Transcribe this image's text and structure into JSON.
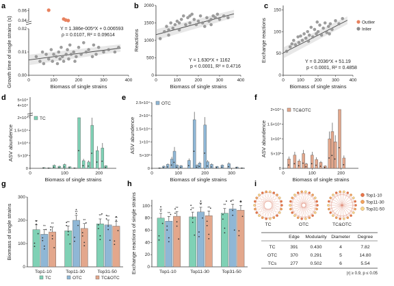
{
  "colors": {
    "inlier": "#8c8c8c",
    "outlier": "#e8825f",
    "tc": "#7fd1b5",
    "otc": "#8fb7d6",
    "tcotc": "#e3a78c",
    "axis": "#333333",
    "fit": "#444444",
    "node_top1": "#e8734a",
    "node_top11": "#f2a25c",
    "node_top31": "#f7d88a"
  },
  "chart_data": [
    {
      "panel": "a",
      "type": "scatter",
      "xlabel": "Biomass of single strains",
      "ylabel": "Growth time of single strains (s)",
      "xticks": [
        0,
        100,
        200,
        300,
        400
      ],
      "yticks_lower": [
        0.0,
        0.01,
        0.02
      ],
      "yticks_upper": [
        0.04,
        0.06
      ],
      "equation": "Y = 1.386e-005*X + 0.006593",
      "stats": "ρ = 0.0107, R² = 0.09614",
      "outliers": [
        [
          80,
          0.061
        ],
        [
          140,
          0.043
        ],
        [
          148,
          0.041
        ],
        [
          158,
          0.04
        ]
      ],
      "points": [
        [
          30,
          0.008
        ],
        [
          45,
          0.006
        ],
        [
          55,
          0.01
        ],
        [
          60,
          0.005
        ],
        [
          70,
          0.009
        ],
        [
          80,
          0.007
        ],
        [
          90,
          0.011
        ],
        [
          95,
          0.006
        ],
        [
          100,
          0.009
        ],
        [
          110,
          0.008
        ],
        [
          115,
          0.005
        ],
        [
          120,
          0.01
        ],
        [
          125,
          0.007
        ],
        [
          130,
          0.012
        ],
        [
          135,
          0.008
        ],
        [
          140,
          0.006
        ],
        [
          150,
          0.009
        ],
        [
          155,
          0.011
        ],
        [
          160,
          0.007
        ],
        [
          165,
          0.013
        ],
        [
          170,
          0.009
        ],
        [
          180,
          0.01
        ],
        [
          185,
          0.006
        ],
        [
          190,
          0.008
        ],
        [
          200,
          0.012
        ],
        [
          210,
          0.009
        ],
        [
          220,
          0.014
        ],
        [
          230,
          0.01
        ],
        [
          240,
          0.011
        ],
        [
          255,
          0.008
        ],
        [
          260,
          0.013
        ],
        [
          270,
          0.009
        ],
        [
          280,
          0.012
        ],
        [
          300,
          0.01
        ],
        [
          320,
          0.011
        ],
        [
          345,
          0.01
        ],
        [
          360,
          0.012
        ]
      ]
    },
    {
      "panel": "b",
      "type": "scatter",
      "xlabel": "Biomass of single strains",
      "ylabel": "Reactions",
      "xticks": [
        0,
        100,
        200,
        300,
        400
      ],
      "yticks": [
        0,
        500,
        1000,
        1500,
        2000
      ],
      "equation": "Y = 1.630*X + 1162",
      "stats": "p < 0.0001, R² = 0.4716",
      "points": [
        [
          20,
          1050
        ],
        [
          40,
          1250
        ],
        [
          50,
          1400
        ],
        [
          60,
          1300
        ],
        [
          70,
          1500
        ],
        [
          80,
          1350
        ],
        [
          90,
          1450
        ],
        [
          100,
          1550
        ],
        [
          110,
          1300
        ],
        [
          120,
          1600
        ],
        [
          130,
          1700
        ],
        [
          140,
          1450
        ],
        [
          150,
          1650
        ],
        [
          160,
          1500
        ],
        [
          170,
          1750
        ],
        [
          180,
          1600
        ],
        [
          190,
          1450
        ],
        [
          200,
          1550
        ],
        [
          210,
          1700
        ],
        [
          220,
          1500
        ],
        [
          230,
          1400
        ],
        [
          240,
          1650
        ],
        [
          250,
          1550
        ],
        [
          260,
          1600
        ],
        [
          270,
          1700
        ],
        [
          280,
          1650
        ],
        [
          300,
          1600
        ],
        [
          320,
          1700
        ],
        [
          340,
          1650
        ],
        [
          60,
          1150
        ],
        [
          110,
          1500
        ],
        [
          160,
          1700
        ],
        [
          260,
          1450
        ],
        [
          290,
          1750
        ]
      ]
    },
    {
      "panel": "c",
      "type": "scatter",
      "xlabel": "Biomass of single strains",
      "ylabel": "Exchange reactions",
      "xticks": [
        0,
        100,
        200,
        300,
        400
      ],
      "yticks": [
        0,
        50,
        100,
        150
      ],
      "equation": "Y = 0.2036*X + 51.19",
      "stats": "p < 0.0001, R² = 0.4858",
      "legend": [
        "Outlier",
        "Inlier"
      ],
      "points": [
        [
          20,
          55
        ],
        [
          40,
          65
        ],
        [
          60,
          80
        ],
        [
          70,
          70
        ],
        [
          90,
          75
        ],
        [
          100,
          90
        ],
        [
          110,
          80
        ],
        [
          120,
          95
        ],
        [
          130,
          85
        ],
        [
          140,
          100
        ],
        [
          150,
          92
        ],
        [
          160,
          110
        ],
        [
          170,
          88
        ],
        [
          180,
          105
        ],
        [
          190,
          95
        ],
        [
          200,
          100
        ],
        [
          210,
          115
        ],
        [
          220,
          92
        ],
        [
          230,
          108
        ],
        [
          240,
          120
        ],
        [
          250,
          98
        ],
        [
          260,
          112
        ],
        [
          270,
          118
        ],
        [
          280,
          105
        ],
        [
          300,
          125
        ],
        [
          320,
          118
        ],
        [
          340,
          130
        ],
        [
          50,
          72
        ],
        [
          85,
          88
        ],
        [
          145,
          78
        ],
        [
          195,
          122
        ],
        [
          265,
          95
        ]
      ]
    },
    {
      "panel": "d",
      "type": "bar",
      "legend": "TC",
      "xlabel": "Biomass of single strains",
      "ylabel": "ASV abundence",
      "xticks": [
        0,
        100,
        200
      ],
      "yticks": [
        "0",
        "5×10³",
        "1×10⁴",
        "1.5×10⁴",
        "2×10⁴"
      ],
      "ytick_break": [
        "4×10⁴",
        "5×10⁴"
      ],
      "bars": [
        [
          40,
          300
        ],
        [
          55,
          200
        ],
        [
          70,
          1200
        ],
        [
          85,
          800
        ],
        [
          100,
          1500
        ],
        [
          115,
          600
        ],
        [
          130,
          200
        ],
        [
          142,
          20000
        ],
        [
          155,
          3000
        ],
        [
          170,
          2500
        ],
        [
          180,
          17000
        ],
        [
          195,
          7000
        ],
        [
          210,
          8000
        ],
        [
          220,
          1000
        ]
      ]
    },
    {
      "panel": "e",
      "type": "bar",
      "legend": "OTC",
      "xlabel": "Biomass of single strains",
      "ylabel": "ASV abundence",
      "xticks": [
        0,
        100,
        200,
        300
      ],
      "yticks": [
        "0",
        "5×10³",
        "1×10⁴",
        "1.5×10⁴",
        "2×10⁴",
        "2.5×10⁴"
      ],
      "bars": [
        [
          30,
          200
        ],
        [
          45,
          800
        ],
        [
          60,
          1500
        ],
        [
          75,
          3500
        ],
        [
          85,
          6500
        ],
        [
          95,
          1200
        ],
        [
          110,
          1000
        ],
        [
          140,
          3000
        ],
        [
          160,
          18500
        ],
        [
          170,
          1200
        ],
        [
          180,
          2000
        ],
        [
          200,
          16500
        ],
        [
          210,
          2500
        ],
        [
          225,
          1500
        ],
        [
          245,
          700
        ],
        [
          265,
          1200
        ],
        [
          290,
          1800
        ],
        [
          320,
          500
        ],
        [
          340,
          200
        ]
      ]
    },
    {
      "panel": "f",
      "type": "bar",
      "legend": "TC&OTC",
      "xlabel": "Biomass of single strains",
      "ylabel": "ASV abundence",
      "xticks": [
        0,
        100,
        200
      ],
      "yticks": [
        "0",
        "5×10³",
        "1×10⁴",
        "1.5×10⁴",
        "2×10⁴"
      ],
      "bars": [
        [
          20,
          3200
        ],
        [
          40,
          4500
        ],
        [
          55,
          2500
        ],
        [
          70,
          5000
        ],
        [
          80,
          1500
        ],
        [
          100,
          4500
        ],
        [
          115,
          3000
        ],
        [
          130,
          2000
        ],
        [
          145,
          800
        ],
        [
          160,
          10000
        ],
        [
          170,
          12500
        ],
        [
          180,
          9000
        ],
        [
          195,
          22000
        ],
        [
          210,
          3500
        ]
      ]
    },
    {
      "panel": "g",
      "type": "bar",
      "ylabel": "Biomass of single strains",
      "yticks": [
        0,
        100,
        200,
        300
      ],
      "categories": [
        "Top1-10",
        "Top11-30",
        "Top31-50"
      ],
      "legend": [
        "TC",
        "OTC",
        "TC&OTC"
      ],
      "series": [
        {
          "name": "TC",
          "values": [
            160,
            155,
            185
          ]
        },
        {
          "name": "OTC",
          "values": [
            140,
            200,
            180
          ]
        },
        {
          "name": "TC&OTC",
          "values": [
            150,
            165,
            175
          ]
        }
      ]
    },
    {
      "panel": "h",
      "type": "bar",
      "ylabel": "Exchange reactions of single strains",
      "yticks": [
        0,
        20,
        40,
        60,
        80,
        100
      ],
      "categories": [
        "Top1-10",
        "Top11-30",
        "Top31-50"
      ],
      "series": [
        {
          "name": "TC",
          "values": [
            80,
            82,
            88
          ]
        },
        {
          "name": "OTC",
          "values": [
            75,
            90,
            95
          ]
        },
        {
          "name": "TC&OTC",
          "values": [
            83,
            84,
            93
          ]
        }
      ]
    },
    {
      "panel": "i",
      "type": "table",
      "networks": [
        "TC",
        "OTC",
        "TC&OTC"
      ],
      "legend": [
        "Top1-10",
        "Top11-30",
        "Top31-50"
      ],
      "columns": [
        "",
        "Edge",
        "Modularity",
        "Diameter",
        "Degree"
      ],
      "rows": [
        [
          "TC",
          "391",
          "0.430",
          "4",
          "7.82"
        ],
        [
          "OTC",
          "370",
          "0.291",
          "5",
          "14.80"
        ],
        [
          "TCs",
          "277",
          "0.502",
          "6",
          "5.54"
        ]
      ],
      "footnote": "|r| ≥ 0.9, p ≤ 0.05"
    }
  ]
}
